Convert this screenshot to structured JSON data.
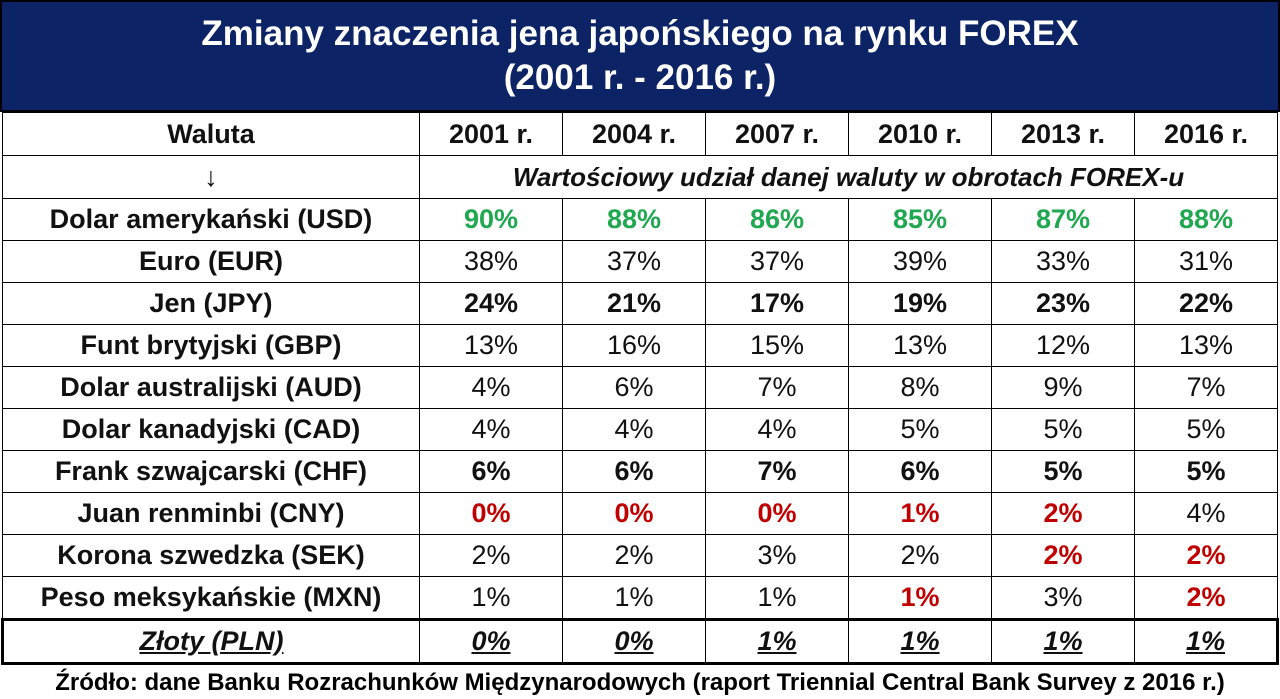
{
  "title": {
    "line1": "Zmiany znaczenia jena japońskiego na rynku FOREX",
    "line2": "(2001 r. - 2016 r.)"
  },
  "colors": {
    "title_bg": "#0c2466",
    "highlight_green": "#1fa84f",
    "highlight_red": "#c00000"
  },
  "chart_data": {
    "type": "table",
    "header_first": "Waluta",
    "header_arrow": "↓",
    "years": [
      "2001 r.",
      "2004 r.",
      "2007 r.",
      "2010 r.",
      "2013 r.",
      "2016 r."
    ],
    "subheader": "Wartościowy udział danej waluty w obrotach FOREX-u",
    "rows": [
      {
        "name": "Dolar amerykański (USD)",
        "values": [
          "90%",
          "88%",
          "86%",
          "85%",
          "87%",
          "88%"
        ],
        "styles": [
          "green",
          "green",
          "green",
          "green",
          "green",
          "green"
        ]
      },
      {
        "name": "Euro (EUR)",
        "values": [
          "38%",
          "37%",
          "37%",
          "39%",
          "33%",
          "31%"
        ],
        "styles": [
          "",
          "",
          "",
          "",
          "",
          ""
        ]
      },
      {
        "name": "Jen (JPY)",
        "values": [
          "24%",
          "21%",
          "17%",
          "19%",
          "23%",
          "22%"
        ],
        "styles": [
          "bold",
          "bold",
          "bold",
          "bold",
          "bold",
          "bold"
        ]
      },
      {
        "name": "Funt brytyjski (GBP)",
        "values": [
          "13%",
          "16%",
          "15%",
          "13%",
          "12%",
          "13%"
        ],
        "styles": [
          "",
          "",
          "",
          "",
          "",
          ""
        ]
      },
      {
        "name": "Dolar australijski (AUD)",
        "values": [
          "4%",
          "6%",
          "7%",
          "8%",
          "9%",
          "7%"
        ],
        "styles": [
          "",
          "",
          "",
          "",
          "",
          ""
        ]
      },
      {
        "name": "Dolar kanadyjski (CAD)",
        "values": [
          "4%",
          "4%",
          "4%",
          "5%",
          "5%",
          "5%"
        ],
        "styles": [
          "",
          "",
          "",
          "",
          "",
          ""
        ]
      },
      {
        "name": "Frank szwajcarski (CHF)",
        "values": [
          "6%",
          "6%",
          "7%",
          "6%",
          "5%",
          "5%"
        ],
        "styles": [
          "bold",
          "bold",
          "bold",
          "bold",
          "bold",
          "bold"
        ]
      },
      {
        "name": "Juan renminbi (CNY)",
        "values": [
          "0%",
          "0%",
          "0%",
          "1%",
          "2%",
          "4%"
        ],
        "styles": [
          "red",
          "red",
          "red",
          "red",
          "red",
          ""
        ]
      },
      {
        "name": "Korona szwedzka (SEK)",
        "values": [
          "2%",
          "2%",
          "3%",
          "2%",
          "2%",
          "2%"
        ],
        "styles": [
          "",
          "",
          "",
          "",
          "red",
          "red"
        ]
      },
      {
        "name": "Peso meksykańskie (MXN)",
        "values": [
          "1%",
          "1%",
          "1%",
          "1%",
          "3%",
          "2%"
        ],
        "styles": [
          "",
          "",
          "",
          "red",
          "",
          "red"
        ]
      },
      {
        "name": "Złoty (PLN)",
        "values": [
          "0%",
          "0%",
          "1%",
          "1%",
          "1%",
          "1%"
        ],
        "styles": [
          "ul",
          "ul",
          "ul",
          "ul",
          "ul",
          "ul"
        ],
        "emphasized": true
      }
    ]
  },
  "source": "Źródło: dane Banku Rozrachunków Międzynarodowych (raport Triennial Central Bank Survey z 2016 r.)"
}
